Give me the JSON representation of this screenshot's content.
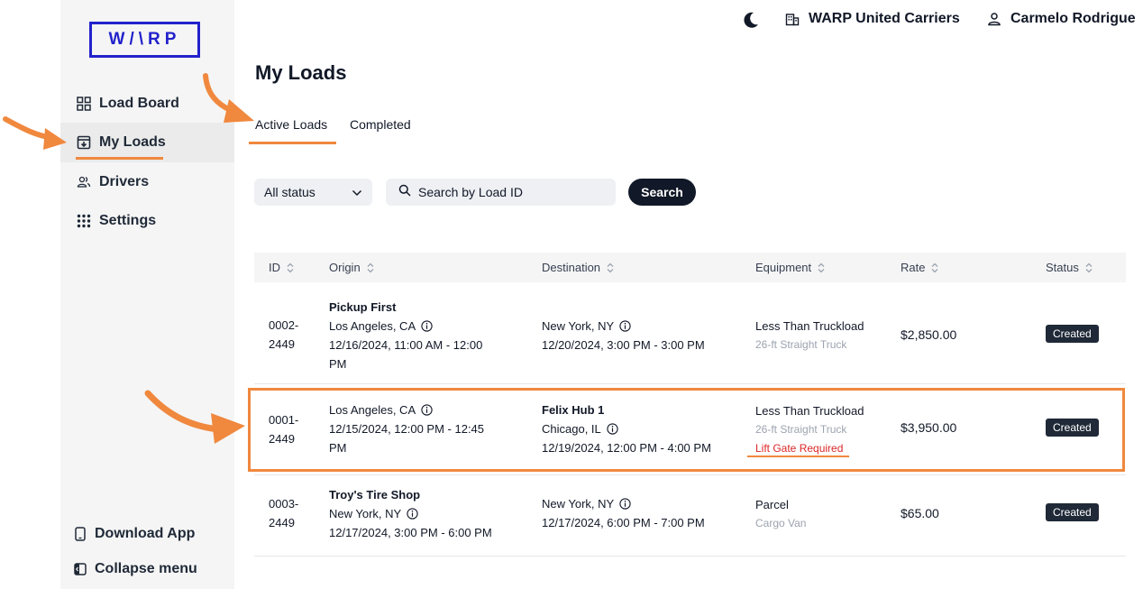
{
  "brand": {
    "logo_text": "W/\\RP",
    "accent": "#2222cc",
    "highlight_color": "#f0883e"
  },
  "sidebar": {
    "items": [
      {
        "label": "Load Board",
        "icon": "grid-icon"
      },
      {
        "label": "My Loads",
        "icon": "download-box-icon"
      },
      {
        "label": "Drivers",
        "icon": "users-icon"
      },
      {
        "label": "Settings",
        "icon": "dots-grid-icon"
      }
    ],
    "bottom": [
      {
        "label": "Download App",
        "icon": "phone-icon"
      },
      {
        "label": "Collapse menu",
        "icon": "collapse-icon"
      }
    ]
  },
  "header": {
    "theme_icon": "moon-icon",
    "company": "WARP United Carriers",
    "user": "Carmelo Rodrigue"
  },
  "main": {
    "title": "My Loads",
    "tabs": [
      {
        "label": "Active Loads"
      },
      {
        "label": "Completed"
      }
    ],
    "filter": {
      "selected": "All status"
    },
    "search": {
      "placeholder": "Search by Load ID",
      "button": "Search"
    },
    "columns": [
      "ID",
      "Origin",
      "Destination",
      "Equipment",
      "Rate",
      "Status"
    ],
    "rows": [
      {
        "id_line1": "0002-",
        "id_line2": "2449",
        "origin_name": "Pickup First",
        "origin_city": "Los Angeles, CA",
        "origin_time1": "12/16/2024, 11:00 AM - 12:00",
        "origin_time2": "PM",
        "dest_name": "",
        "dest_city": "New York, NY",
        "dest_time": "12/20/2024, 3:00 PM - 3:00 PM",
        "equip_type": "Less Than Truckload",
        "equip_detail": "26-ft Straight Truck",
        "equip_note": "",
        "rate": "$2,850.00",
        "status": "Created"
      },
      {
        "id_line1": "0001-",
        "id_line2": "2449",
        "origin_name": "",
        "origin_city": "Los Angeles, CA",
        "origin_time1": "12/15/2024, 12:00 PM - 12:45",
        "origin_time2": "PM",
        "dest_name": "Felix Hub 1",
        "dest_city": "Chicago, IL",
        "dest_time": "12/19/2024, 12:00 PM - 4:00 PM",
        "equip_type": "Less Than Truckload",
        "equip_detail": "26-ft Straight Truck",
        "equip_note": "Lift Gate Required",
        "rate": "$3,950.00",
        "status": "Created"
      },
      {
        "id_line1": "0003-",
        "id_line2": "2449",
        "origin_name": "Troy's Tire Shop",
        "origin_city": "New York, NY",
        "origin_time1": "12/17/2024, 3:00 PM - 6:00 PM",
        "origin_time2": "",
        "dest_name": "",
        "dest_city": "New York, NY",
        "dest_time": "12/17/2024, 6:00 PM - 7:00 PM",
        "equip_type": "Parcel",
        "equip_detail": "Cargo Van",
        "equip_note": "",
        "rate": "$65.00",
        "status": "Created"
      }
    ]
  }
}
